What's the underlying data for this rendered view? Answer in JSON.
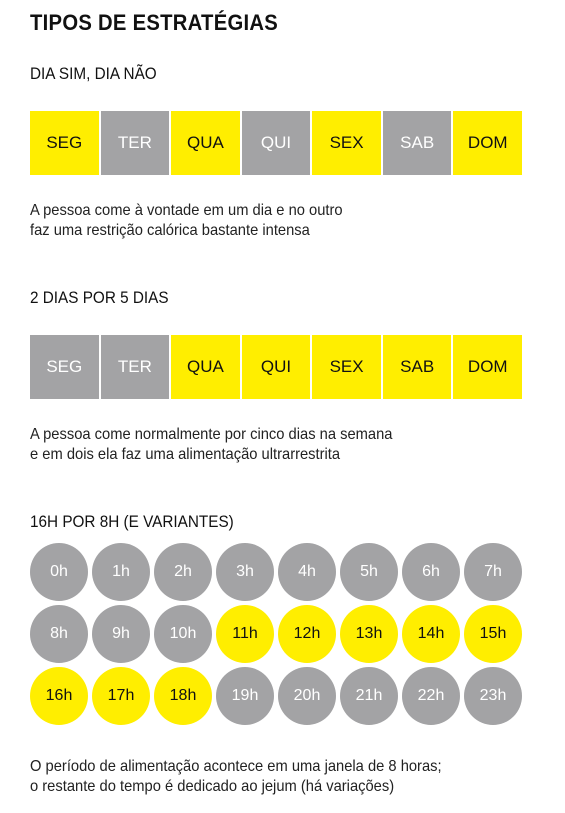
{
  "title": "TIPOS DE ESTRATÉGIAS",
  "sections": [
    {
      "heading": "DIA SIM, DIA NÃO",
      "days": [
        {
          "label": "SEG",
          "eating": true
        },
        {
          "label": "TER",
          "eating": false
        },
        {
          "label": "QUA",
          "eating": true
        },
        {
          "label": "QUI",
          "eating": false
        },
        {
          "label": "SEX",
          "eating": true
        },
        {
          "label": "SAB",
          "eating": false
        },
        {
          "label": "DOM",
          "eating": true
        }
      ],
      "description": [
        "A pessoa come à vontade em um dia e no outro",
        "faz uma restrição calórica bastante intensa"
      ]
    },
    {
      "heading": "2 DIAS POR 5 DIAS",
      "days": [
        {
          "label": "SEG",
          "eating": false
        },
        {
          "label": "TER",
          "eating": false
        },
        {
          "label": "QUA",
          "eating": true
        },
        {
          "label": "QUI",
          "eating": true
        },
        {
          "label": "SEX",
          "eating": true
        },
        {
          "label": "SAB",
          "eating": true
        },
        {
          "label": "DOM",
          "eating": true
        }
      ],
      "description": [
        "A pessoa come normalmente por cinco dias na semana",
        "e em dois ela faz uma alimentação ultrarrestrita"
      ]
    }
  ],
  "hours_section": {
    "heading": "16H POR 8H (E VARIANTES)",
    "hours": [
      {
        "label": "0h",
        "eating": false
      },
      {
        "label": "1h",
        "eating": false
      },
      {
        "label": "2h",
        "eating": false
      },
      {
        "label": "3h",
        "eating": false
      },
      {
        "label": "4h",
        "eating": false
      },
      {
        "label": "5h",
        "eating": false
      },
      {
        "label": "6h",
        "eating": false
      },
      {
        "label": "7h",
        "eating": false
      },
      {
        "label": "8h",
        "eating": false
      },
      {
        "label": "9h",
        "eating": false
      },
      {
        "label": "10h",
        "eating": false
      },
      {
        "label": "11h",
        "eating": true
      },
      {
        "label": "12h",
        "eating": true
      },
      {
        "label": "13h",
        "eating": true
      },
      {
        "label": "14h",
        "eating": true
      },
      {
        "label": "15h",
        "eating": true
      },
      {
        "label": "16h",
        "eating": true
      },
      {
        "label": "17h",
        "eating": true
      },
      {
        "label": "18h",
        "eating": true
      },
      {
        "label": "19h",
        "eating": false
      },
      {
        "label": "20h",
        "eating": false
      },
      {
        "label": "21h",
        "eating": false
      },
      {
        "label": "22h",
        "eating": false
      },
      {
        "label": "23h",
        "eating": false
      }
    ],
    "description": [
      "O período de alimentação acontece em uma janela de 8 horas;",
      "o restante do tempo é dedicado ao jejum (há variações)"
    ]
  },
  "colors": {
    "active": "#ffee00",
    "inactive": "#a3a3a5"
  }
}
